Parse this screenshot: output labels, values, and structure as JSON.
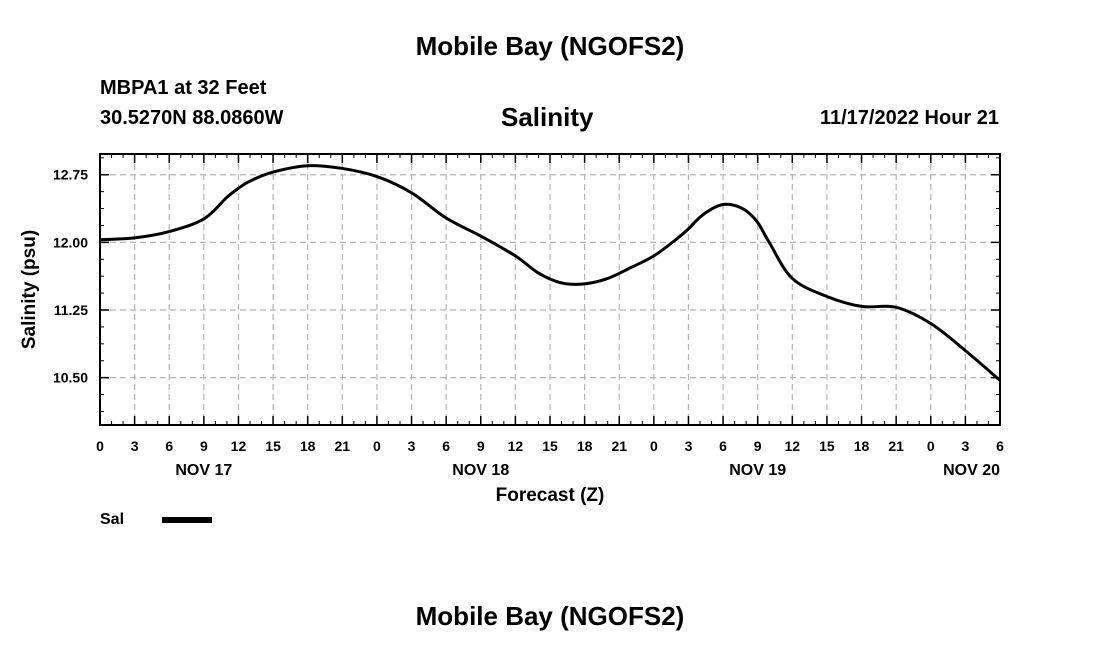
{
  "header": {
    "title": "Mobile Bay (NGOFS2)",
    "station": "MBPA1 at 32 Feet",
    "coords": "30.5270N  88.0860W",
    "chart_title": "Salinity",
    "datetime": "11/17/2022 Hour 21"
  },
  "footer": {
    "title": "Mobile Bay (NGOFS2)"
  },
  "legend": {
    "label": "Sal",
    "color": "#000000"
  },
  "chart_data": {
    "type": "line",
    "title": "Salinity",
    "xlabel": "Forecast (Z)",
    "ylabel": "Salinity (psu)",
    "ylim": [
      9.975,
      12.98
    ],
    "xlim": [
      0,
      78
    ],
    "x_unit": "hours since NOV 17 00Z",
    "yticks": [
      10.5,
      11.25,
      12.0,
      12.75
    ],
    "ytick_labels": [
      "10.50",
      "11.25",
      "12.00",
      "12.75"
    ],
    "xticks": [
      0,
      3,
      6,
      9,
      12,
      15,
      18,
      21,
      24,
      27,
      30,
      33,
      36,
      39,
      42,
      45,
      48,
      51,
      54,
      57,
      60,
      63,
      66,
      69,
      72,
      75,
      78
    ],
    "xtick_labels": [
      "0",
      "3",
      "6",
      "9",
      "12",
      "15",
      "18",
      "21",
      "0",
      "3",
      "6",
      "9",
      "12",
      "15",
      "18",
      "21",
      "0",
      "3",
      "6",
      "9",
      "12",
      "15",
      "18",
      "21",
      "0",
      "3",
      "6"
    ],
    "day_labels": [
      {
        "x": 9,
        "label": "NOV 17"
      },
      {
        "x": 33,
        "label": "NOV 18"
      },
      {
        "x": 57,
        "label": "NOV 19"
      },
      {
        "x": 78,
        "label": "NOV 20"
      }
    ],
    "grid": true,
    "series": [
      {
        "name": "Sal",
        "x": [
          0,
          3,
          6,
          9,
          11,
          12,
          13,
          15,
          18,
          21,
          24,
          27,
          30,
          33,
          36,
          38,
          40,
          42,
          44,
          46,
          48,
          50,
          51,
          52,
          53,
          54,
          55,
          56,
          57,
          58,
          60,
          63,
          66,
          69,
          72,
          75,
          78
        ],
        "values": [
          12.03,
          12.05,
          12.12,
          12.26,
          12.5,
          12.6,
          12.68,
          12.78,
          12.85,
          12.82,
          12.73,
          12.55,
          12.27,
          12.07,
          11.85,
          11.66,
          11.55,
          11.54,
          11.6,
          11.72,
          11.85,
          12.04,
          12.15,
          12.28,
          12.37,
          12.42,
          12.41,
          12.35,
          12.22,
          12.0,
          11.6,
          11.4,
          11.29,
          11.28,
          11.1,
          10.8,
          10.47
        ]
      }
    ]
  }
}
